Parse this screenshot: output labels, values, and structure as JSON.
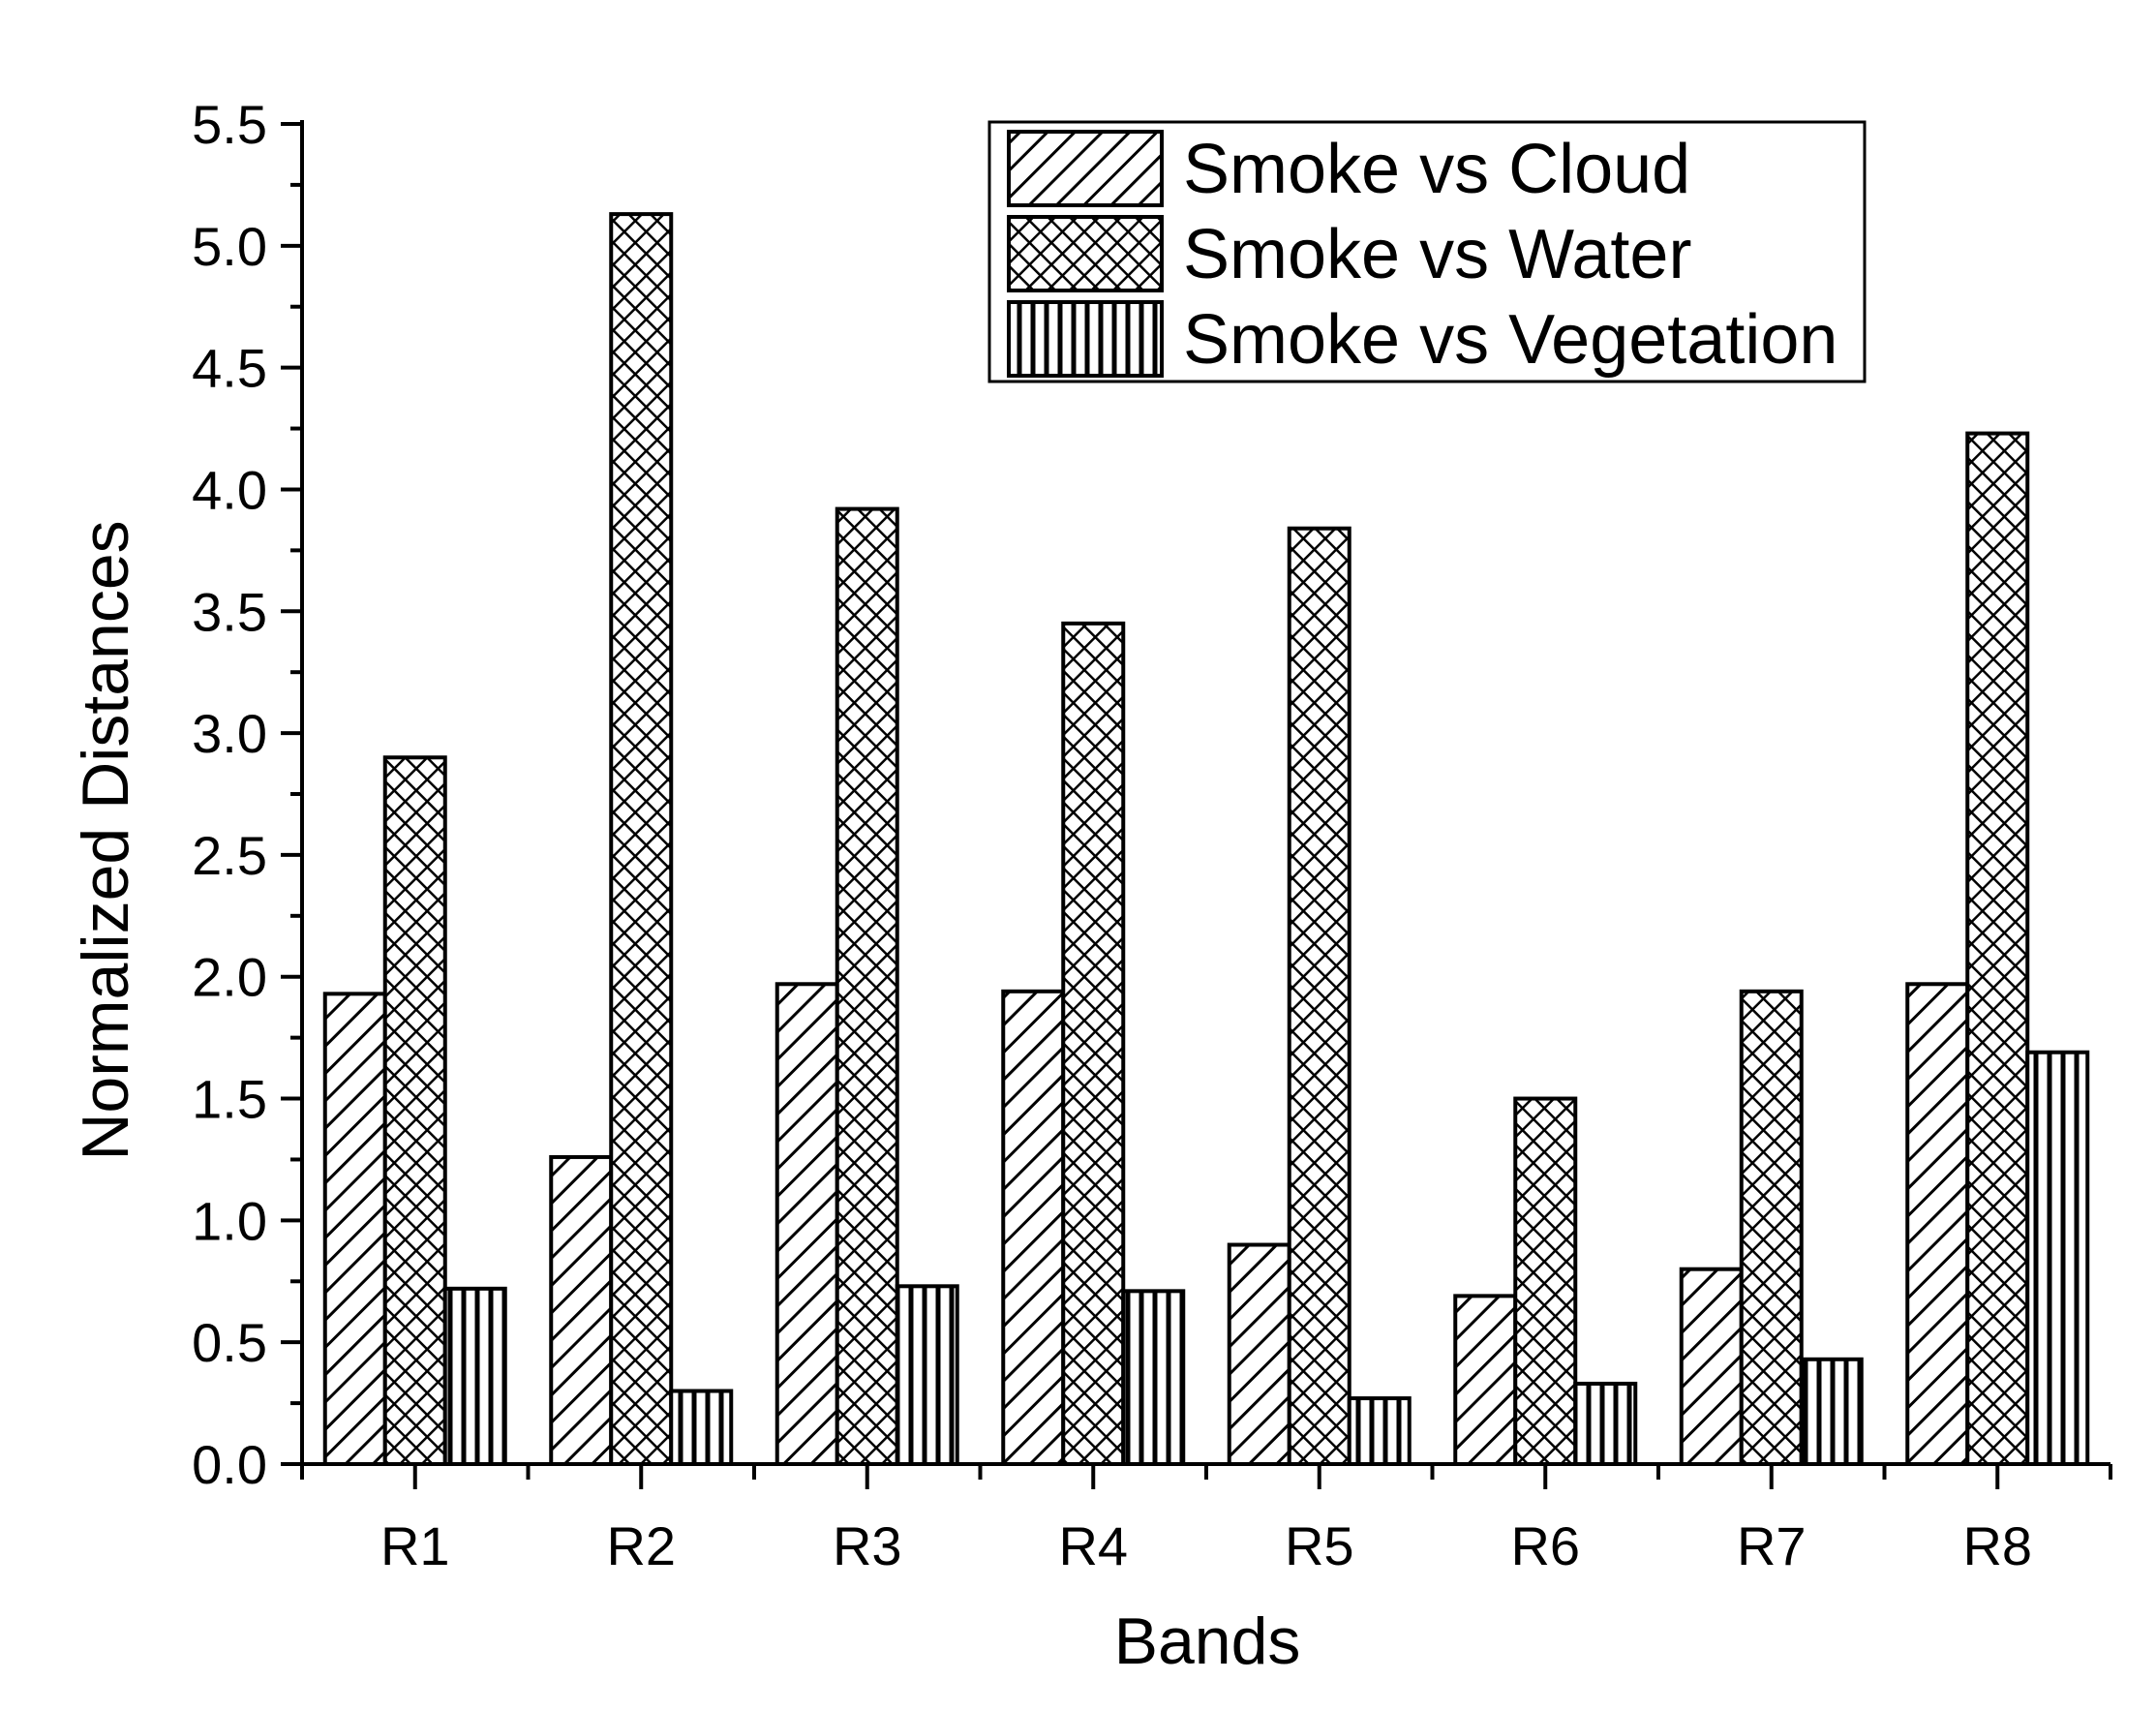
{
  "chart_data": {
    "type": "bar",
    "title": "",
    "xlabel": "Bands",
    "ylabel": "Normalized Distances",
    "ylim": [
      0,
      5.5
    ],
    "yticks": [
      "0.0",
      "0.5",
      "1.0",
      "1.5",
      "2.0",
      "2.5",
      "3.0",
      "3.5",
      "4.0",
      "4.5",
      "5.0",
      "5.5"
    ],
    "categories": [
      "R1",
      "R2",
      "R3",
      "R4",
      "R5",
      "R6",
      "R7",
      "R8"
    ],
    "grid": false,
    "legend_position": "top-right",
    "series": [
      {
        "name": "Smoke vs Cloud",
        "pattern": "diagonal-hatch",
        "values": [
          1.93,
          1.26,
          1.97,
          1.94,
          0.9,
          0.69,
          0.8,
          1.97
        ]
      },
      {
        "name": "Smoke vs Water",
        "pattern": "cross-hatch",
        "values": [
          2.9,
          5.13,
          3.92,
          3.45,
          3.84,
          1.5,
          1.94,
          4.23
        ]
      },
      {
        "name": "Smoke vs Vegetation",
        "pattern": "vertical-stripes",
        "values": [
          0.72,
          0.3,
          0.73,
          0.71,
          0.27,
          0.33,
          0.43,
          1.69
        ]
      }
    ]
  }
}
